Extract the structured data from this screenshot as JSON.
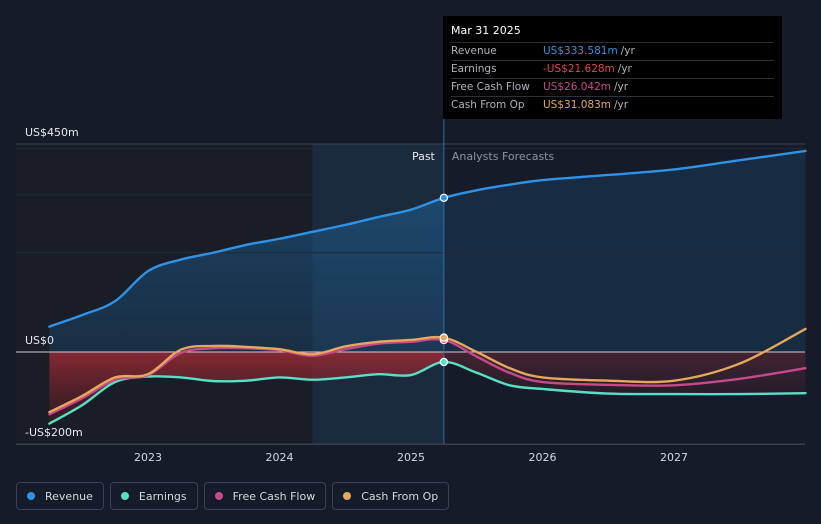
{
  "chart_data": {
    "type": "line",
    "y_axis": {
      "top_label": "US$450m",
      "zero_label": "US$0",
      "bottom_label": "-US$200m",
      "ylim": [
        -200,
        450
      ]
    },
    "x_ticks": [
      "2023",
      "2024",
      "2025",
      "2026",
      "2027"
    ],
    "xlim": [
      2022.25,
      2028.0
    ],
    "divider_x": 2025.25,
    "past_label": "Past",
    "forecast_label": "Analysts Forecasts",
    "series": [
      {
        "name": "Revenue",
        "color": "#2e93e6",
        "fill": true,
        "points": [
          [
            2022.25,
            55
          ],
          [
            2022.5,
            80
          ],
          [
            2022.75,
            110
          ],
          [
            2023.0,
            175
          ],
          [
            2023.25,
            200
          ],
          [
            2023.5,
            215
          ],
          [
            2023.75,
            232
          ],
          [
            2024.0,
            245
          ],
          [
            2024.25,
            260
          ],
          [
            2024.5,
            275
          ],
          [
            2024.75,
            292
          ],
          [
            2025.0,
            308
          ],
          [
            2025.25,
            333.6
          ],
          [
            2025.5,
            350
          ],
          [
            2025.75,
            362
          ],
          [
            2026.0,
            372
          ],
          [
            2026.5,
            383
          ],
          [
            2027.0,
            395
          ],
          [
            2027.5,
            415
          ],
          [
            2028.0,
            435
          ]
        ]
      },
      {
        "name": "Earnings",
        "color": "#58e0c7",
        "fill": false,
        "points": [
          [
            2022.25,
            -155
          ],
          [
            2022.5,
            -115
          ],
          [
            2022.75,
            -65
          ],
          [
            2023.0,
            -53
          ],
          [
            2023.25,
            -55
          ],
          [
            2023.5,
            -63
          ],
          [
            2023.75,
            -62
          ],
          [
            2024.0,
            -55
          ],
          [
            2024.25,
            -60
          ],
          [
            2024.5,
            -55
          ],
          [
            2024.75,
            -48
          ],
          [
            2025.0,
            -50
          ],
          [
            2025.25,
            -21.6
          ],
          [
            2025.5,
            -45
          ],
          [
            2025.75,
            -72
          ],
          [
            2026.0,
            -80
          ],
          [
            2026.5,
            -90
          ],
          [
            2027.0,
            -91
          ],
          [
            2027.5,
            -91
          ],
          [
            2028.0,
            -89
          ]
        ]
      },
      {
        "name": "Free Cash Flow",
        "color": "#c64a8a",
        "fill": false,
        "points": [
          [
            2022.25,
            -135
          ],
          [
            2022.5,
            -100
          ],
          [
            2022.75,
            -60
          ],
          [
            2023.0,
            -50
          ],
          [
            2023.25,
            -2
          ],
          [
            2023.5,
            8
          ],
          [
            2023.75,
            8
          ],
          [
            2024.0,
            4
          ],
          [
            2024.25,
            -8
          ],
          [
            2024.5,
            6
          ],
          [
            2024.75,
            18
          ],
          [
            2025.0,
            22
          ],
          [
            2025.25,
            26.0
          ],
          [
            2025.5,
            -10
          ],
          [
            2025.75,
            -45
          ],
          [
            2026.0,
            -65
          ],
          [
            2026.5,
            -71
          ],
          [
            2027.0,
            -72
          ],
          [
            2027.5,
            -58
          ],
          [
            2028.0,
            -35
          ]
        ]
      },
      {
        "name": "Cash From Op",
        "color": "#e6a85a",
        "fill": false,
        "points": [
          [
            2022.25,
            -130
          ],
          [
            2022.5,
            -95
          ],
          [
            2022.75,
            -55
          ],
          [
            2023.0,
            -48
          ],
          [
            2023.25,
            5
          ],
          [
            2023.5,
            13
          ],
          [
            2023.75,
            11
          ],
          [
            2024.0,
            6
          ],
          [
            2024.25,
            -5
          ],
          [
            2024.5,
            12
          ],
          [
            2024.75,
            22
          ],
          [
            2025.0,
            26
          ],
          [
            2025.25,
            31.1
          ],
          [
            2025.5,
            0
          ],
          [
            2025.75,
            -35
          ],
          [
            2026.0,
            -55
          ],
          [
            2026.5,
            -62
          ],
          [
            2027.0,
            -62
          ],
          [
            2027.5,
            -25
          ],
          [
            2028.0,
            50
          ]
        ]
      }
    ]
  },
  "tooltip": {
    "date": "Mar 31 2025",
    "rows": [
      {
        "label": "Revenue",
        "value": "US$333.581m",
        "unit": "/yr",
        "color": "#2e93e6"
      },
      {
        "label": "Earnings",
        "value": "-US$21.628m",
        "unit": "/yr",
        "color": "#e0454a"
      },
      {
        "label": "Free Cash Flow",
        "value": "US$26.042m",
        "unit": "/yr",
        "color": "#c64a8a"
      },
      {
        "label": "Cash From Op",
        "value": "US$31.083m",
        "unit": "/yr",
        "color": "#e6a85a"
      }
    ]
  },
  "legend": [
    {
      "label": "Revenue",
      "color": "#2e93e6"
    },
    {
      "label": "Earnings",
      "color": "#58e0c7"
    },
    {
      "label": "Free Cash Flow",
      "color": "#c64a8a"
    },
    {
      "label": "Cash From Op",
      "color": "#e6a85a"
    }
  ]
}
